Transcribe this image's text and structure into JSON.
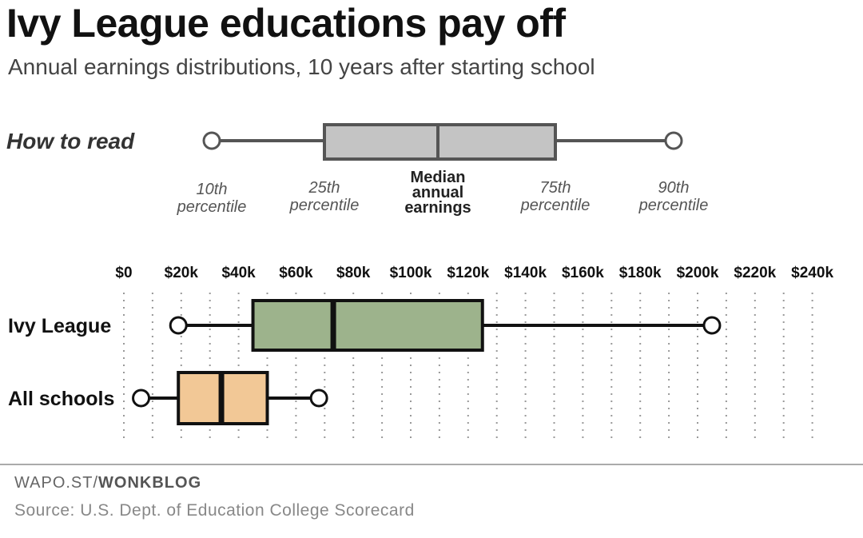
{
  "title": "Ivy League educations pay off",
  "subtitle": "Annual earnings distributions, 10 years after starting school",
  "how_to_read": {
    "label": "How to read",
    "p10": [
      "10th",
      "percentile"
    ],
    "p25": [
      "25th",
      "percentile"
    ],
    "median": [
      "Median",
      "annual",
      "earnings"
    ],
    "p75": [
      "75th",
      "percentile"
    ],
    "p90": [
      "90th",
      "percentile"
    ]
  },
  "credit": {
    "prefix": "WAPO.ST/",
    "name": "WONKBLOG"
  },
  "source": "Source: U.S. Dept. of Education College Scorecard",
  "colors": {
    "ivy": "#9db38c",
    "all": "#f2c896",
    "howto": "#c4c4c4"
  },
  "chart_data": {
    "type": "boxplot",
    "title": "Ivy League educations pay off",
    "subtitle": "Annual earnings distributions, 10 years after starting school",
    "xlim": [
      0,
      250000
    ],
    "x_ticks": [
      0,
      20000,
      40000,
      60000,
      80000,
      100000,
      120000,
      140000,
      160000,
      180000,
      200000,
      220000,
      240000
    ],
    "x_tick_labels": [
      "$0",
      "$20k",
      "$40k",
      "$60k",
      "$80k",
      "$100k",
      "$120k",
      "$140k",
      "$160k",
      "$180k",
      "$200k",
      "$220k",
      "$240k"
    ],
    "series": [
      {
        "name": "Ivy League",
        "p10": 19000,
        "p25": 45000,
        "median": 73000,
        "p75": 125000,
        "p90": 205000,
        "color": "#9db38c"
      },
      {
        "name": "All schools",
        "p10": 6000,
        "p25": 19000,
        "median": 34000,
        "p75": 50000,
        "p90": 68000,
        "color": "#f2c896"
      }
    ]
  }
}
